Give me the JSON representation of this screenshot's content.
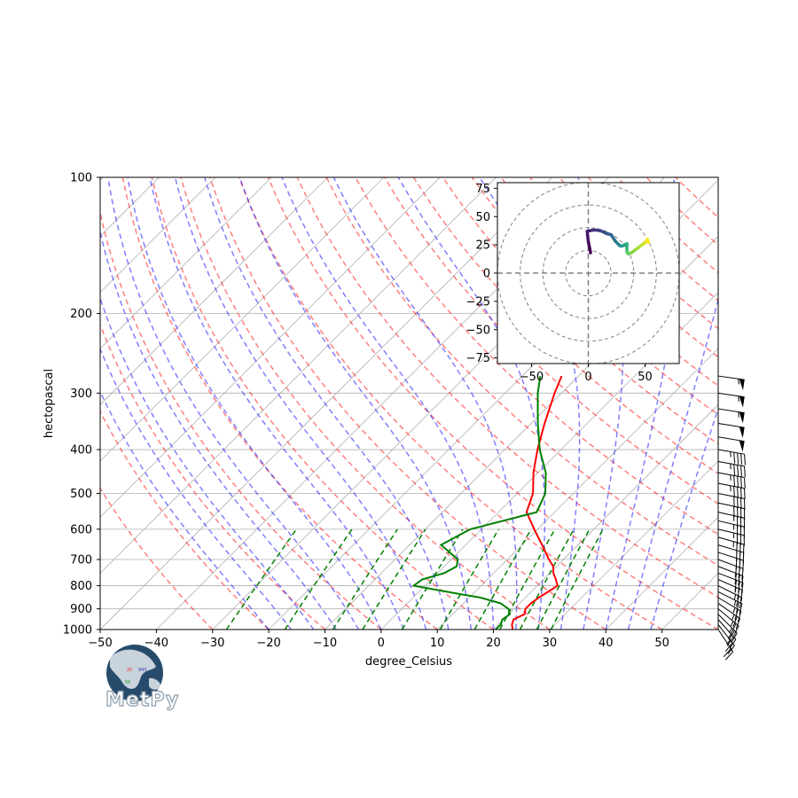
{
  "chart_data": [
    {
      "type": "line",
      "subtype": "skew-t log-p diagram",
      "xlabel": "degree_Celsius",
      "ylabel": "hectopascal",
      "xlim": [
        -50,
        60
      ],
      "ylim": [
        1000,
        100
      ],
      "y_scale": "log",
      "skew_degrees": 45,
      "x_ticks": [
        -50,
        -40,
        -30,
        -20,
        -10,
        0,
        10,
        20,
        30,
        40,
        50
      ],
      "y_ticks": [
        1000,
        900,
        800,
        700,
        600,
        500,
        400,
        300,
        200,
        100
      ],
      "grid": true,
      "series": [
        {
          "role": "temperature",
          "color": "#ff0000",
          "points": [
            [
              1000,
              23.4
            ],
            [
              975,
              22.4
            ],
            [
              950,
              21.8
            ],
            [
              925,
              22.8
            ],
            [
              900,
              22.0
            ],
            [
              875,
              22.0
            ],
            [
              850,
              22.4
            ],
            [
              825,
              23.0
            ],
            [
              800,
              23.6
            ],
            [
              775,
              22.2
            ],
            [
              750,
              20.6
            ],
            [
              725,
              19.4
            ],
            [
              700,
              17.4
            ],
            [
              650,
              13.6
            ],
            [
              600,
              9.4
            ],
            [
              550,
              5.0
            ],
            [
              500,
              2.8
            ],
            [
              450,
              -0.8
            ],
            [
              400,
              -4.2
            ],
            [
              350,
              -7.6
            ],
            [
              300,
              -11.2
            ],
            [
              275,
              -13.0
            ]
          ]
        },
        {
          "role": "dewpoint",
          "color": "#008000",
          "points": [
            [
              1000,
              20.4
            ],
            [
              975,
              20.4
            ],
            [
              950,
              19.8
            ],
            [
              925,
              20.2
            ],
            [
              900,
              19.0
            ],
            [
              875,
              16.6
            ],
            [
              850,
              12.0
            ],
            [
              825,
              5.0
            ],
            [
              800,
              -2.0
            ],
            [
              775,
              -1.6
            ],
            [
              750,
              1.2
            ],
            [
              725,
              2.2
            ],
            [
              700,
              1.2
            ],
            [
              650,
              -4.4
            ],
            [
              600,
              -2.0
            ],
            [
              550,
              6.8
            ],
            [
              500,
              5.0
            ],
            [
              450,
              1.4
            ],
            [
              400,
              -3.8
            ],
            [
              350,
              -8.8
            ],
            [
              300,
              -14.2
            ],
            [
              275,
              -16.8
            ]
          ]
        }
      ],
      "wind_barbs": {
        "pressures": [
          1000,
          975,
          950,
          925,
          900,
          875,
          850,
          825,
          800,
          775,
          750,
          725,
          700,
          675,
          650,
          625,
          600,
          575,
          550,
          525,
          500,
          475,
          450,
          425,
          400,
          375,
          350,
          325,
          300,
          275
        ],
        "u_knots": [
          -12,
          -14,
          -15,
          -16,
          -18,
          -20,
          -22,
          -24,
          -24,
          -25,
          -26,
          -26,
          -27,
          -28,
          -30,
          -32,
          -34,
          -35,
          -36,
          -38,
          -40,
          -42,
          -44,
          -45,
          -46,
          -48,
          -50,
          -52,
          -54,
          -56
        ],
        "v_knots": [
          18,
          18,
          17,
          16,
          15,
          14,
          13,
          12,
          12,
          11,
          10,
          10,
          10,
          9,
          9,
          9,
          8,
          8,
          8,
          8,
          8,
          8,
          8,
          8,
          8,
          8,
          8,
          8,
          8,
          8
        ]
      },
      "reference_lines": {
        "dry_adiabats": {
          "color": "#ff0000",
          "style": "dashed",
          "opacity": 0.5
        },
        "moist_adiabats": {
          "color": "#0000ff",
          "style": "dashed",
          "opacity": 0.5
        },
        "mixing_ratio_lines": {
          "color": "#008000",
          "style": "dashed"
        },
        "skewed_isotherms": {
          "color": "#808080",
          "style": "solid"
        }
      }
    },
    {
      "type": "line",
      "subtype": "hodograph",
      "xlim": [
        -80,
        80
      ],
      "ylim": [
        -80,
        80
      ],
      "x_ticks": [
        -50,
        0,
        50
      ],
      "y_ticks": [
        75,
        50,
        25,
        0,
        -25,
        -50,
        -75
      ],
      "range_rings": [
        20,
        40,
        60,
        80
      ],
      "colormap": "viridis",
      "points": [
        [
          2,
          18
        ],
        [
          0,
          28
        ],
        [
          -1,
          37
        ],
        [
          4,
          38
        ],
        [
          8,
          38
        ],
        [
          12,
          37
        ],
        [
          16,
          35
        ],
        [
          20,
          34
        ],
        [
          22,
          31
        ],
        [
          24,
          28
        ],
        [
          26,
          26
        ],
        [
          28,
          24
        ],
        [
          30,
          24
        ],
        [
          32,
          25
        ],
        [
          34,
          26
        ],
        [
          34,
          22
        ],
        [
          34,
          19
        ],
        [
          35,
          17
        ],
        [
          38,
          18
        ],
        [
          42,
          21
        ],
        [
          46,
          24
        ],
        [
          50,
          27
        ],
        [
          52,
          30
        ],
        [
          53,
          27
        ]
      ]
    }
  ],
  "logo": {
    "text": "MetPy",
    "globe_labels": [
      "20",
      "943",
      "66"
    ]
  }
}
